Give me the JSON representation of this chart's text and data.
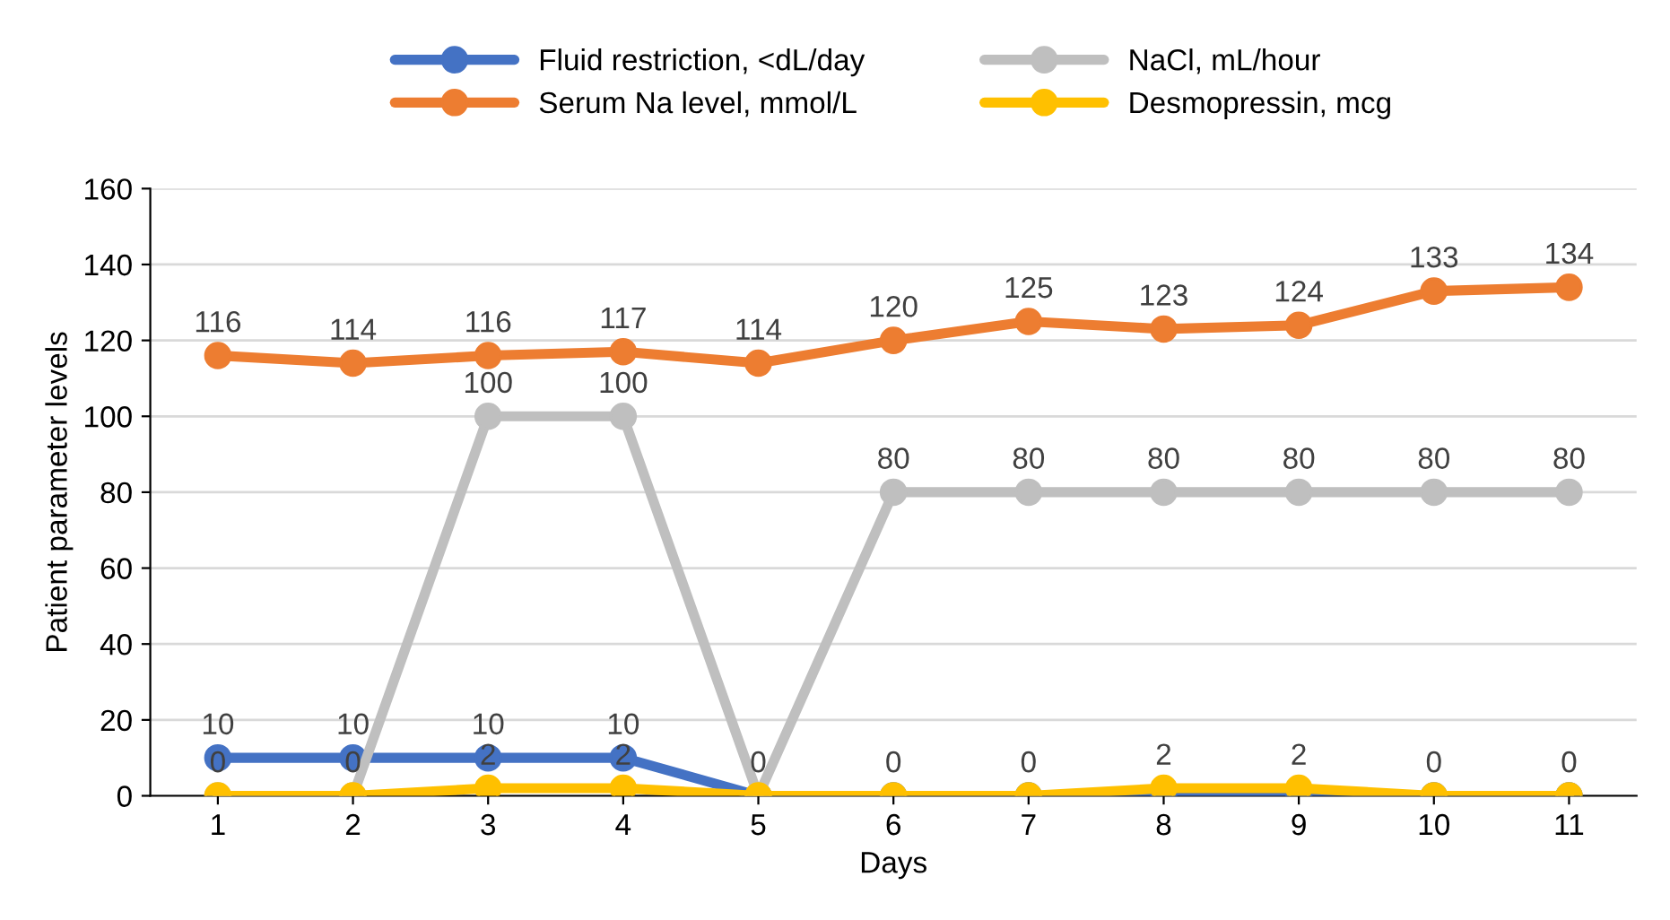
{
  "chart_data": {
    "type": "line",
    "xlabel": "Days",
    "ylabel": "Patient parameter levels",
    "categories": [
      "1",
      "2",
      "3",
      "4",
      "5",
      "6",
      "7",
      "8",
      "9",
      "10",
      "11"
    ],
    "series": [
      {
        "name": "Fluid restriction, <dL/day",
        "color": "#4472c4",
        "values": [
          10,
          10,
          10,
          10,
          0,
          0,
          0,
          0,
          0,
          0,
          0
        ],
        "value_labels": [
          "10",
          "10",
          "10",
          "10",
          null,
          null,
          null,
          null,
          null,
          null,
          null
        ]
      },
      {
        "name": "Serum Na level, mmol/L",
        "color": "#ed7d31",
        "values": [
          116,
          114,
          116,
          117,
          114,
          120,
          125,
          123,
          124,
          133,
          134
        ],
        "value_labels": [
          "116",
          "114",
          "116",
          "117",
          "114",
          "120",
          "125",
          "123",
          "124",
          "133",
          "134"
        ]
      },
      {
        "name": "NaCl, mL/hour",
        "color": "#bfbfbf",
        "values": [
          0,
          0,
          100,
          100,
          0,
          80,
          80,
          80,
          80,
          80,
          80
        ],
        "value_labels": [
          null,
          null,
          "100",
          "100",
          null,
          "80",
          "80",
          "80",
          "80",
          "80",
          "80"
        ]
      },
      {
        "name": "Desmopressin, mcg",
        "color": "#ffc000",
        "values": [
          0,
          0,
          2,
          2,
          0,
          0,
          0,
          2,
          2,
          0,
          0
        ],
        "value_labels": [
          "0",
          "0",
          "2",
          "2",
          "0",
          "0",
          "0",
          "2",
          "2",
          "0",
          "0"
        ]
      }
    ],
    "ylim": [
      0,
      160
    ],
    "yticks": [
      0,
      20,
      40,
      60,
      80,
      100,
      120,
      140,
      160
    ],
    "grid": "y",
    "legend": "top",
    "marker": "circle",
    "line_style": "solid"
  }
}
